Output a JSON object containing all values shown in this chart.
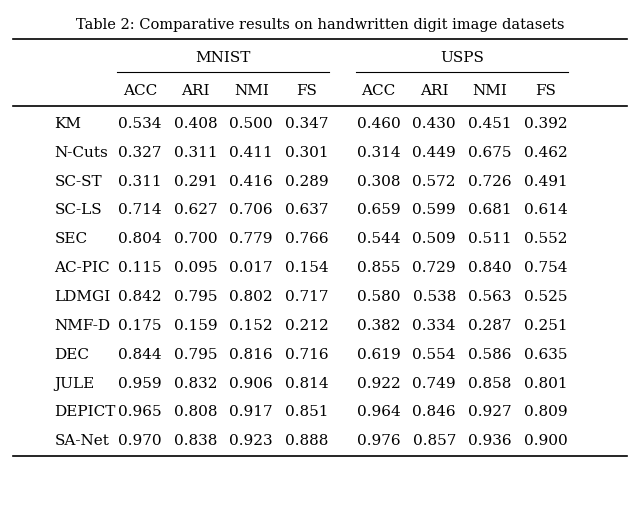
{
  "title": "Table 2: Comparative results on handwritten digit image datasets",
  "group_headers": [
    "MNIST",
    "USPS"
  ],
  "col_headers": [
    "ACC",
    "ARI",
    "NMI",
    "FS",
    "ACC",
    "ARI",
    "NMI",
    "FS"
  ],
  "row_labels": [
    "KM",
    "N-Cuts",
    "SC-ST",
    "SC-LS",
    "SEC",
    "AC-PIC",
    "LDMGI",
    "NMF-D",
    "DEC",
    "JULE",
    "DEPICT",
    "SA-Net"
  ],
  "data": [
    [
      "0.534",
      "0.408",
      "0.500",
      "0.347",
      "0.460",
      "0.430",
      "0.451",
      "0.392"
    ],
    [
      "0.327",
      "0.311",
      "0.411",
      "0.301",
      "0.314",
      "0.449",
      "0.675",
      "0.462"
    ],
    [
      "0.311",
      "0.291",
      "0.416",
      "0.289",
      "0.308",
      "0.572",
      "0.726",
      "0.491"
    ],
    [
      "0.714",
      "0.627",
      "0.706",
      "0.637",
      "0.659",
      "0.599",
      "0.681",
      "0.614"
    ],
    [
      "0.804",
      "0.700",
      "0.779",
      "0.766",
      "0.544",
      "0.509",
      "0.511",
      "0.552"
    ],
    [
      "0.115",
      "0.095",
      "0.017",
      "0.154",
      "0.855",
      "0.729",
      "0.840",
      "0.754"
    ],
    [
      "0.842",
      "0.795",
      "0.802",
      "0.717",
      "0.580",
      "0.538",
      "0.563",
      "0.525"
    ],
    [
      "0.175",
      "0.159",
      "0.152",
      "0.212",
      "0.382",
      "0.334",
      "0.287",
      "0.251"
    ],
    [
      "0.844",
      "0.795",
      "0.816",
      "0.716",
      "0.619",
      "0.554",
      "0.586",
      "0.635"
    ],
    [
      "0.959",
      "0.832",
      "0.906",
      "0.814",
      "0.922",
      "0.749",
      "0.858",
      "0.801"
    ],
    [
      "0.965",
      "0.808",
      "0.917",
      "0.851",
      "0.964",
      "0.846",
      "0.927",
      "0.809"
    ],
    [
      "0.970",
      "0.838",
      "0.923",
      "0.888",
      "0.976",
      "0.857",
      "0.936",
      "0.900"
    ]
  ],
  "background_color": "#ffffff",
  "text_color": "#000000",
  "title_fontsize": 10.5,
  "header_fontsize": 11,
  "data_fontsize": 11,
  "row_label_fontsize": 11,
  "figsize": [
    6.4,
    5.06
  ],
  "dpi": 100
}
